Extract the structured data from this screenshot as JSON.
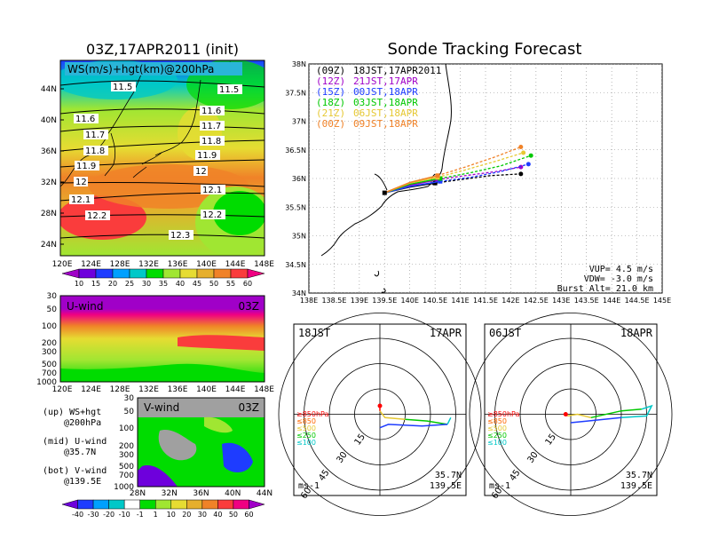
{
  "colors": {
    "ws_scale": [
      "#a000c8",
      "#6e00dc",
      "#1e3cff",
      "#00a0ff",
      "#00c8c8",
      "#00dc00",
      "#a0e632",
      "#e6dc32",
      "#e6af2d",
      "#f08228",
      "#fa3c3c",
      "#f00082"
    ],
    "uv_scale": [
      "#00a0ff",
      "#00c8c8",
      "#00dc00",
      "#a0e632",
      "#e6dc32",
      "#e6af2d",
      "#f08228",
      "#fa3c3c",
      "#f00082",
      "#a000c8"
    ],
    "track": {
      "09Z": "#000000",
      "12Z": "#a000c8",
      "15Z": "#1e3cff",
      "18Z": "#00c800",
      "21Z": "#e6c832",
      "00Z": "#f08228"
    },
    "hodo": {
      "850": "#ff0000",
      "500": "#e6c832",
      "250": "#00c800",
      "100": "#00c8c8",
      "low": "#1e3cff"
    }
  },
  "ws_panel": {
    "title": "03Z,17APR2011 (init)",
    "label": "WS(m/s)+hgt(km)@200hPa",
    "lat_ticks": [
      "44N",
      "40N",
      "36N",
      "32N",
      "28N",
      "24N"
    ],
    "lon_ticks": [
      "120E",
      "124E",
      "128E",
      "132E",
      "136E",
      "140E",
      "144E",
      "148E"
    ],
    "contour_labels": [
      "11.5",
      "11.5",
      "11.6",
      "11.6",
      "11.7",
      "11.7",
      "11.8",
      "11.8",
      "11.9",
      "11.9",
      "12",
      "12",
      "12.1",
      "12.1",
      "12.2",
      "12.2",
      "12.3"
    ],
    "colorbar_labels": [
      "10",
      "15",
      "20",
      "25",
      "30",
      "35",
      "40",
      "45",
      "50",
      "55",
      "60"
    ]
  },
  "u_panel": {
    "label": "U-wind",
    "time": "03Z",
    "p_ticks": [
      "30",
      "50",
      "100",
      "200",
      "300",
      "500",
      "700",
      "1000"
    ],
    "lon_ticks": [
      "120E",
      "124E",
      "128E",
      "132E",
      "136E",
      "140E",
      "144E",
      "148E"
    ]
  },
  "v_panel": {
    "label": "V-wind",
    "time": "03Z",
    "p_ticks": [
      "30",
      "50",
      "100",
      "200",
      "300",
      "500",
      "700",
      "1000"
    ],
    "lat_ticks": [
      "28N",
      "32N",
      "36N",
      "40N",
      "44N"
    ],
    "colorbar_labels": [
      "-40",
      "-30",
      "-20",
      "-10",
      "-1",
      "1",
      "10",
      "20",
      "30",
      "40",
      "50",
      "60"
    ]
  },
  "legend_notes": [
    {
      "l1": "(up) WS+hgt",
      "l2": "@200hPa"
    },
    {
      "l1": "(mid) U-wind",
      "l2": "@35.7N"
    },
    {
      "l1": "(bot) V-wind",
      "l2": "@139.5E"
    }
  ],
  "track_panel": {
    "title": "Sonde Tracking Forecast",
    "lat_ticks": [
      "38N",
      "37.5N",
      "37N",
      "36.5N",
      "36N",
      "35.5N",
      "35N",
      "34.5N",
      "34N"
    ],
    "lon_ticks": [
      "138E",
      "138.5E",
      "139E",
      "139.5E",
      "140E",
      "140.5E",
      "141E",
      "141.5E",
      "142E",
      "142.5E",
      "143E",
      "143.5E",
      "144E",
      "144.5E",
      "145E"
    ],
    "legend": [
      {
        "z": "(09Z)",
        "t": "18JST,17APR2011"
      },
      {
        "z": "(12Z)",
        "t": "21JST,17APR"
      },
      {
        "z": "(15Z)",
        "t": "00JST,18APR"
      },
      {
        "z": "(18Z)",
        "t": "03JST,18APR"
      },
      {
        "z": "(21Z)",
        "t": "06JST,18APR"
      },
      {
        "z": "(00Z)",
        "t": "09JST,18APR"
      }
    ],
    "params": [
      "VUP= 4.5 m/s",
      "VDW= -3.0 m/s",
      "Burst Alt= 21.0 km"
    ]
  },
  "chart_data": [
    {
      "type": "line",
      "name": "Sonde Tracking Forecast",
      "x_unit": "deg E",
      "y_unit": "deg N",
      "xlim": [
        138,
        145
      ],
      "ylim": [
        34,
        38
      ],
      "launch": {
        "lon": 139.5,
        "lat": 35.75
      },
      "series": [
        {
          "name": "09Z",
          "ascent": [
            [
              139.5,
              35.75
            ],
            [
              140.0,
              35.85
            ],
            [
              140.5,
              35.92
            ]
          ],
          "descent": [
            [
              140.5,
              35.92
            ],
            [
              141.0,
              35.98
            ],
            [
              141.6,
              36.05
            ],
            [
              142.2,
              36.08
            ]
          ]
        },
        {
          "name": "12Z",
          "ascent": [
            [
              139.5,
              35.75
            ],
            [
              140.0,
              35.88
            ],
            [
              140.55,
              35.98
            ]
          ],
          "descent": [
            [
              140.55,
              35.98
            ],
            [
              141.1,
              36.05
            ],
            [
              141.7,
              36.12
            ],
            [
              142.2,
              36.2
            ]
          ]
        },
        {
          "name": "15Z",
          "ascent": [
            [
              139.5,
              35.75
            ],
            [
              140.0,
              35.86
            ],
            [
              140.6,
              35.95
            ]
          ],
          "descent": [
            [
              140.6,
              35.95
            ],
            [
              141.2,
              36.02
            ],
            [
              141.8,
              36.12
            ],
            [
              142.35,
              36.25
            ]
          ]
        },
        {
          "name": "18Z",
          "ascent": [
            [
              139.5,
              35.75
            ],
            [
              140.0,
              35.9
            ],
            [
              140.6,
              36.0
            ]
          ],
          "descent": [
            [
              140.6,
              36.0
            ],
            [
              141.2,
              36.1
            ],
            [
              141.8,
              36.22
            ],
            [
              142.4,
              36.4
            ]
          ]
        },
        {
          "name": "21Z",
          "ascent": [
            [
              139.5,
              35.75
            ],
            [
              140.0,
              35.92
            ],
            [
              140.55,
              36.02
            ]
          ],
          "descent": [
            [
              140.55,
              36.02
            ],
            [
              141.1,
              36.15
            ],
            [
              141.7,
              36.3
            ],
            [
              142.25,
              36.45
            ]
          ]
        },
        {
          "name": "00Z",
          "ascent": [
            [
              139.5,
              35.75
            ],
            [
              140.0,
              35.93
            ],
            [
              140.55,
              36.05
            ]
          ],
          "descent": [
            [
              140.55,
              36.05
            ],
            [
              141.1,
              36.2
            ],
            [
              141.7,
              36.38
            ],
            [
              142.2,
              36.55
            ]
          ]
        }
      ]
    },
    {
      "type": "scatter",
      "name": "hodograph-18JST",
      "time_label": "18JST",
      "date_label": "17APR",
      "rings": [
        15,
        30,
        45,
        60
      ],
      "ring_labels": [
        "15",
        "30",
        "45",
        "60"
      ],
      "unit": "ms-1",
      "location": [
        "35.7N",
        "139.5E"
      ],
      "levels": [
        "≥850hPa",
        "≤850",
        "≤500",
        "≤250",
        "≤100"
      ],
      "hodo_segments": [
        {
          "level": "850",
          "points": [
            [
              0,
              5
            ],
            [
              0,
              2
            ]
          ]
        },
        {
          "level": "500",
          "points": [
            [
              0,
              2
            ],
            [
              3,
              -2
            ],
            [
              15,
              -3
            ]
          ]
        },
        {
          "level": "250",
          "points": [
            [
              15,
              -3
            ],
            [
              28,
              -4
            ],
            [
              40,
              -6
            ]
          ]
        },
        {
          "level": "100",
          "points": [
            [
              40,
              -6
            ],
            [
              42,
              -2
            ],
            [
              40,
              -6
            ]
          ]
        },
        {
          "level": "low",
          "points": [
            [
              40,
              -6
            ],
            [
              25,
              -7
            ],
            [
              5,
              -6
            ],
            [
              0,
              -8
            ]
          ]
        }
      ]
    },
    {
      "type": "scatter",
      "name": "hodograph-06JST",
      "time_label": "06JST",
      "date_label": "18APR",
      "rings": [
        15,
        30,
        45,
        60
      ],
      "ring_labels": [
        "15",
        "30",
        "45",
        "60"
      ],
      "unit": "ms-1",
      "location": [
        "35.7N",
        "139.5E"
      ],
      "levels": [
        "≥850hPa",
        "≤850",
        "≤500",
        "≤250",
        "≤100"
      ],
      "hodo_segments": [
        {
          "level": "850",
          "points": [
            [
              -3,
              0
            ],
            [
              -2,
              -1
            ]
          ]
        },
        {
          "level": "500",
          "points": [
            [
              -2,
              -1
            ],
            [
              4,
              0
            ],
            [
              12,
              -2
            ]
          ]
        },
        {
          "level": "250",
          "points": [
            [
              12,
              -2
            ],
            [
              30,
              2
            ],
            [
              42,
              3
            ]
          ]
        },
        {
          "level": "100",
          "points": [
            [
              42,
              3
            ],
            [
              48,
              5
            ],
            [
              45,
              -1
            ],
            [
              30,
              -2
            ]
          ]
        },
        {
          "level": "low",
          "points": [
            [
              30,
              -2
            ],
            [
              10,
              -4
            ],
            [
              0,
              -5
            ]
          ]
        }
      ]
    }
  ]
}
